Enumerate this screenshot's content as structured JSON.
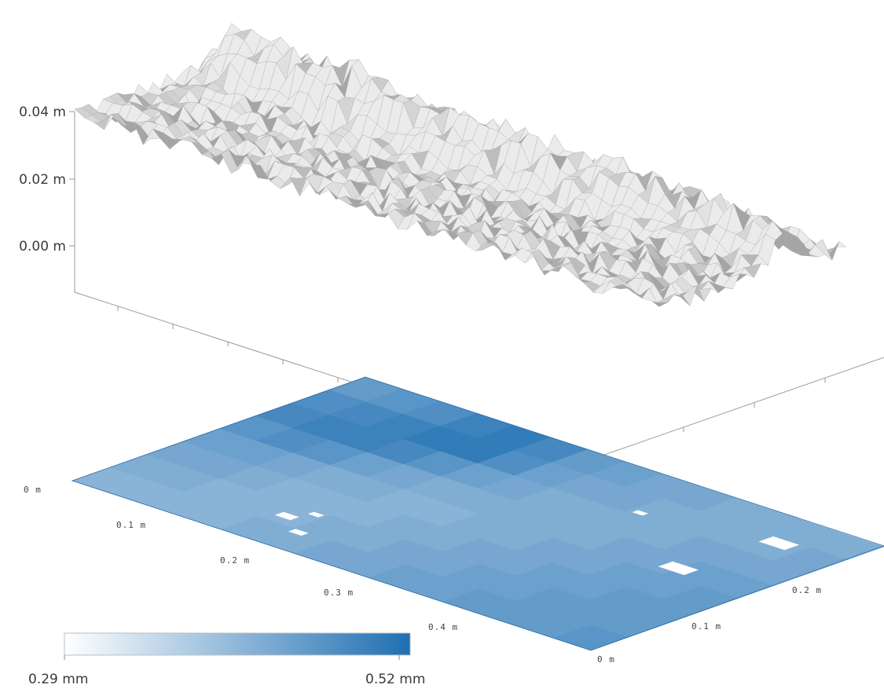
{
  "chart_data": {
    "type": "heatmap",
    "title": "",
    "surface": {
      "z_tick_labels": [
        "0.04 m",
        "0.02 m",
        "0.00 m"
      ],
      "z_range_m": [
        -0.01,
        0.045
      ],
      "baseline_height_m": 0.033,
      "ridge_height_m": 0.045,
      "color": "#c8c8c8"
    },
    "heatmap": {
      "rows": 8,
      "cols": 14,
      "x_tick_labels": [
        "0 m",
        "0.1 m",
        "0.2 m",
        "0.3 m",
        "0.4 m"
      ],
      "y_tick_labels": [
        "0 m",
        "0.1 m",
        "0.2 m"
      ],
      "values_mm": [
        [
          0.45,
          0.46,
          0.47,
          0.49,
          0.5,
          0.48,
          0.45,
          0.44,
          0.43,
          0.43,
          0.42,
          0.42,
          0.42,
          0.42
        ],
        [
          0.47,
          0.48,
          0.49,
          0.5,
          0.5,
          0.47,
          0.44,
          0.43,
          0.43,
          0.42,
          0.42,
          0.42,
          0.42,
          0.43
        ],
        [
          0.48,
          0.49,
          0.49,
          0.48,
          0.46,
          0.44,
          0.43,
          0.42,
          0.42,
          0.42,
          0.42,
          0.43,
          0.43,
          0.43
        ],
        [
          0.46,
          0.47,
          0.46,
          0.44,
          0.43,
          0.42,
          0.42,
          0.42,
          0.42,
          0.42,
          0.43,
          0.43,
          0.44,
          0.44
        ],
        [
          0.44,
          0.44,
          0.43,
          0.42,
          0.42,
          0.41,
          0.41,
          0.42,
          0.42,
          0.43,
          0.43,
          0.44,
          0.44,
          0.45
        ],
        [
          0.43,
          0.43,
          0.42,
          0.41,
          0.41,
          0.41,
          0.42,
          0.42,
          0.43,
          0.43,
          0.44,
          0.44,
          0.45,
          0.45
        ],
        [
          0.42,
          0.42,
          0.41,
          0.41,
          0.41,
          0.42,
          0.42,
          0.43,
          0.43,
          0.44,
          0.44,
          0.45,
          0.45,
          0.45
        ],
        [
          0.41,
          0.41,
          0.41,
          0.41,
          0.42,
          0.42,
          0.43,
          0.43,
          0.44,
          0.44,
          0.45,
          0.45,
          0.45,
          0.46
        ]
      ]
    },
    "colorbar": {
      "min_label": "0.29 mm",
      "max_label": "0.52 mm",
      "min": 0.29,
      "max": 0.52,
      "color_low": "#ffffff",
      "color_high": "#1f6fb2"
    }
  }
}
